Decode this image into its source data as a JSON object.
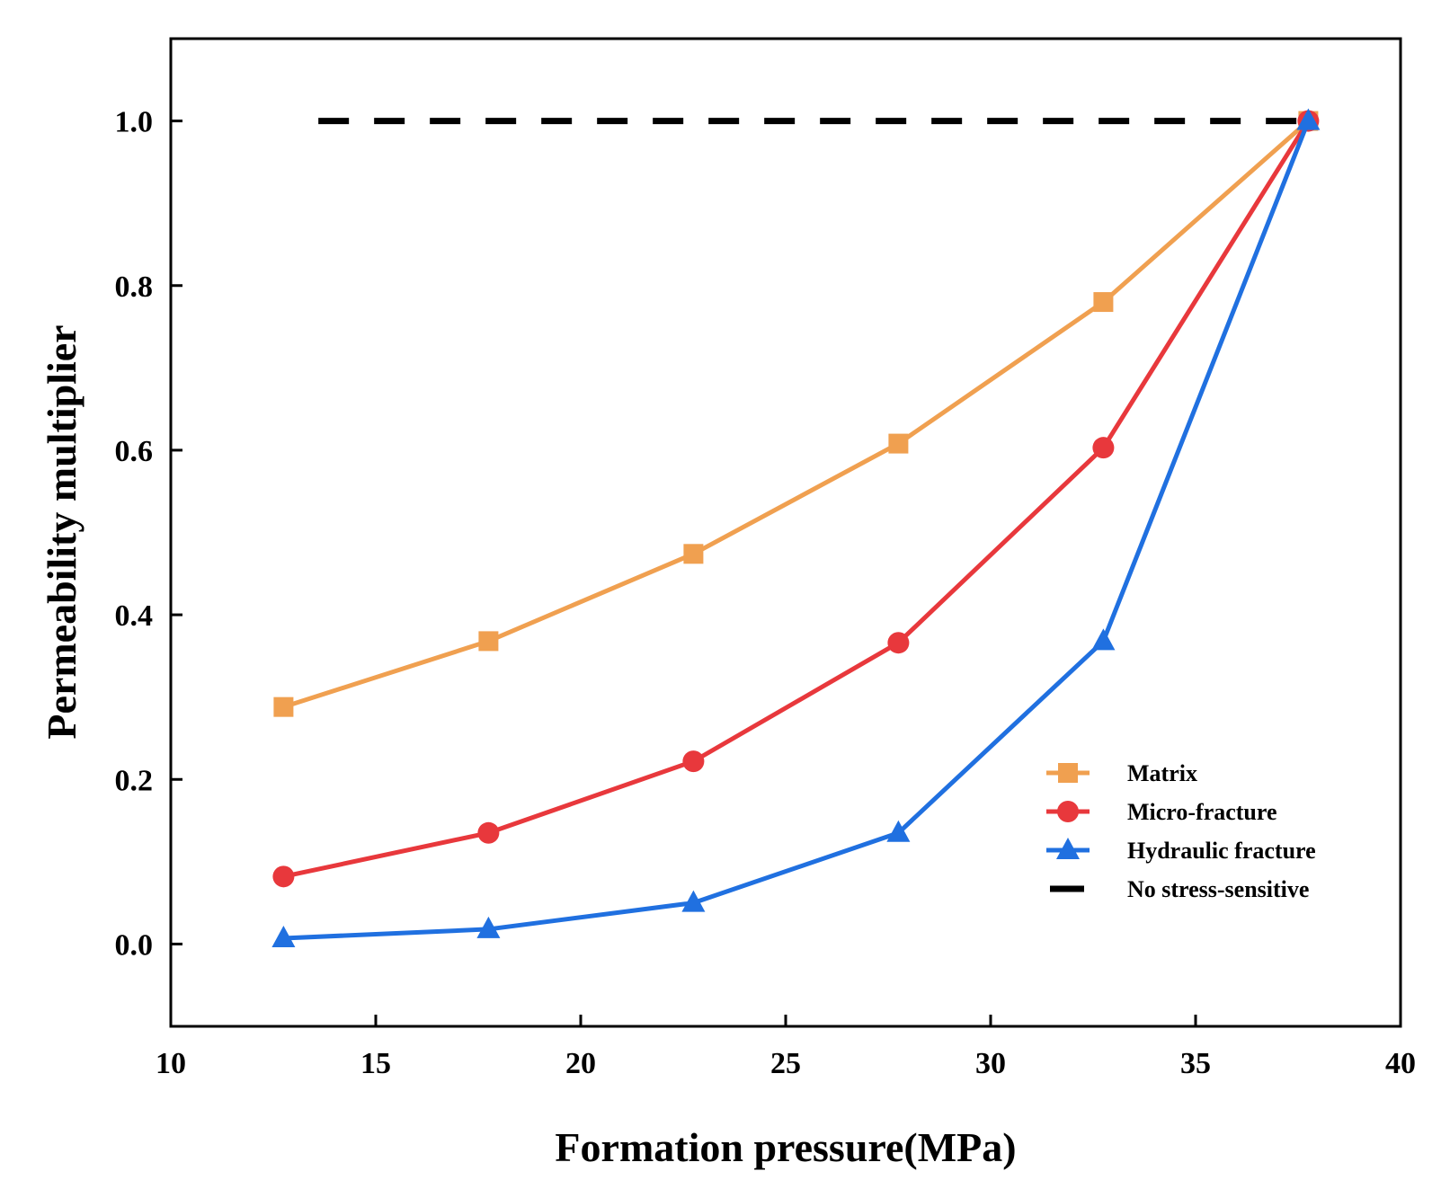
{
  "chart_data": {
    "type": "line",
    "title": "",
    "xlabel": "Formation pressure(MPa)",
    "ylabel": "Permeability multiplier",
    "xlim": [
      10,
      40
    ],
    "ylim": [
      -0.1,
      1.1
    ],
    "xticks": [
      10,
      15,
      20,
      25,
      30,
      35,
      40
    ],
    "xtick_labels": [
      "10",
      "15",
      "20",
      "25",
      "30",
      "35",
      "40"
    ],
    "yticks": [
      0.0,
      0.2,
      0.4,
      0.6,
      0.8,
      1.0
    ],
    "ytick_labels": [
      "0.0",
      "0.2",
      "0.4",
      "0.6",
      "0.8",
      "1.0"
    ],
    "grid": false,
    "legend_position": "bottom-right",
    "series": [
      {
        "name": "Matrix",
        "color": "#F0A050",
        "marker": "square",
        "x": [
          12.75,
          17.75,
          22.75,
          27.75,
          32.75,
          37.75
        ],
        "y": [
          0.288,
          0.368,
          0.474,
          0.608,
          0.78,
          1.0
        ]
      },
      {
        "name": "Micro-fracture",
        "color": "#E8383C",
        "marker": "circle",
        "x": [
          12.75,
          17.75,
          22.75,
          27.75,
          32.75,
          37.75
        ],
        "y": [
          0.082,
          0.135,
          0.222,
          0.366,
          0.603,
          1.0
        ]
      },
      {
        "name": "Hydraulic fracture",
        "color": "#2070E0",
        "marker": "triangle",
        "x": [
          12.75,
          17.75,
          22.75,
          27.75,
          32.75,
          37.75
        ],
        "y": [
          0.007,
          0.018,
          0.05,
          0.135,
          0.368,
          1.0
        ]
      },
      {
        "name": "No stress-sensitive",
        "color": "#000000",
        "marker": "none",
        "dash": "dashed",
        "x": [
          13.6,
          37.75
        ],
        "y": [
          1.0,
          1.0
        ]
      }
    ]
  }
}
